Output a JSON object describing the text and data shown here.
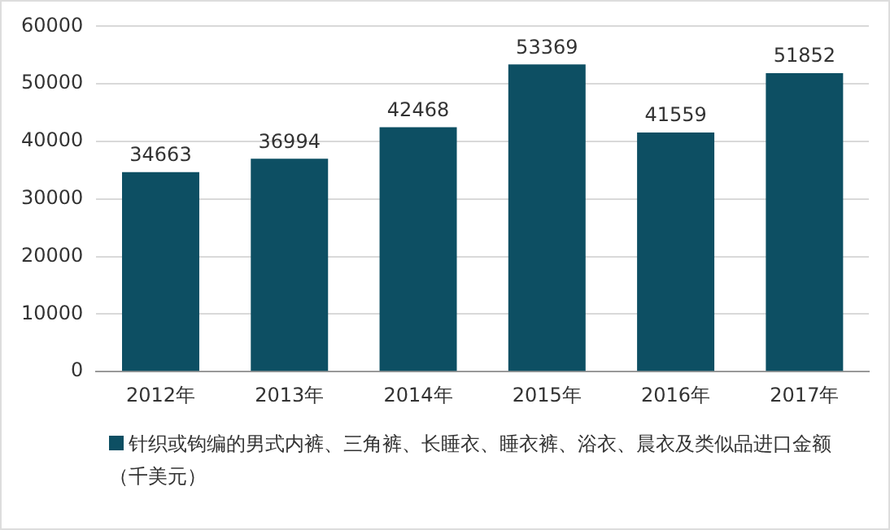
{
  "chart_data": {
    "type": "bar",
    "categories": [
      "2012年",
      "2013年",
      "2014年",
      "2015年",
      "2016年",
      "2017年"
    ],
    "series": [
      {
        "name": "针织或钩编的男式内裤、三角裤、长睡衣、睡衣裤、浴衣、晨衣及类似品进口金额（千美元）",
        "color": "#0d4f63",
        "values": [
          34663,
          36994,
          42468,
          53369,
          41559,
          51852
        ]
      }
    ],
    "ylim": [
      0,
      60000
    ],
    "yticks": [
      0,
      10000,
      20000,
      30000,
      40000,
      50000,
      60000
    ],
    "grid": "y",
    "legend": "bottom",
    "data_labels": true
  }
}
